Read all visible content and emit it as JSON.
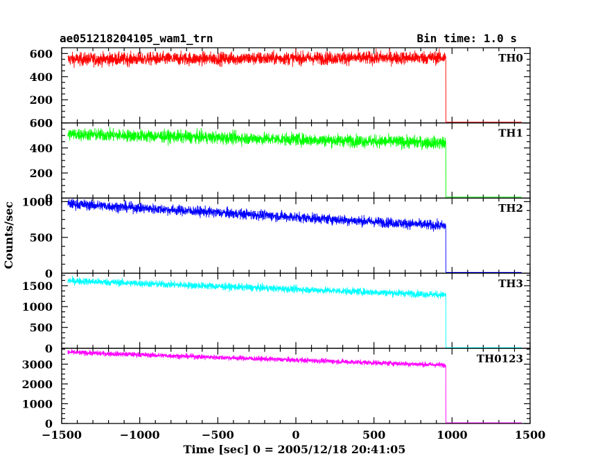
{
  "header": {
    "title": "ae051218204105_wam1_trn",
    "bin_time": "Bin time: 1.0 s"
  },
  "chart_data": {
    "type": "line",
    "xlabel": "Time [sec] 0 = 2005/12/18 20:41:05",
    "ylabel": "Counts/sec",
    "xlim": [
      -1500,
      1500
    ],
    "xticks": [
      "-1500",
      "-1000",
      "-500",
      "0",
      "500",
      "1000",
      "1500"
    ],
    "grid": false,
    "data_x_range": [
      -1460,
      1450
    ],
    "drop_time": 960,
    "series": [
      {
        "name": "TH0",
        "color": "#ff0000",
        "ylim": [
          0,
          650
        ],
        "yticks": [
          "0",
          "200",
          "400",
          "600"
        ],
        "mean_start": 550,
        "mean_end": 565,
        "noise": 40,
        "after_drop": 8
      },
      {
        "name": "TH1",
        "color": "#00ff00",
        "ylim": [
          0,
          600
        ],
        "yticks": [
          "0",
          "200",
          "400",
          "600"
        ],
        "mean_start": 510,
        "mean_end": 440,
        "noise": 35,
        "after_drop": 8
      },
      {
        "name": "TH2",
        "color": "#0000ff",
        "ylim": [
          0,
          1050
        ],
        "yticks": [
          "0",
          "500",
          "1000"
        ],
        "mean_start": 970,
        "mean_end": 660,
        "noise": 50,
        "after_drop": 12
      },
      {
        "name": "TH3",
        "color": "#00ffff",
        "ylim": [
          0,
          1800
        ],
        "yticks": [
          "0",
          "500",
          "1000",
          "1500"
        ],
        "mean_start": 1620,
        "mean_end": 1280,
        "noise": 60,
        "after_drop": 15
      },
      {
        "name": "TH0123",
        "color": "#ff00ff",
        "ylim": [
          0,
          3800
        ],
        "yticks": [
          "0",
          "1000",
          "2000",
          "3000"
        ],
        "mean_start": 3600,
        "mean_end": 2950,
        "noise": 90,
        "after_drop": 40
      }
    ]
  }
}
